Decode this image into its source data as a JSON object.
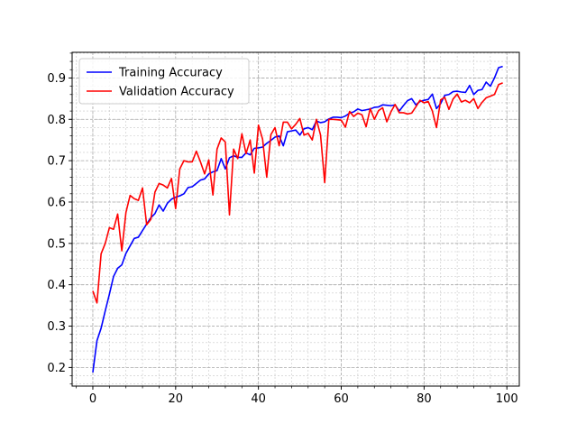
{
  "chart_data": {
    "type": "line",
    "title": "",
    "xlabel": "",
    "ylabel": "",
    "xlim": [
      -5.0,
      103.0
    ],
    "ylim": [
      0.155,
      0.962
    ],
    "xticks": [
      0,
      20,
      40,
      60,
      80,
      100
    ],
    "yticks": [
      0.2,
      0.3,
      0.4,
      0.5,
      0.6,
      0.7,
      0.8,
      0.9
    ],
    "minor_xstep": 4,
    "minor_ystep": 0.02,
    "grid": "major-and-minor-dashed",
    "legend_position": "upper-left",
    "series": [
      {
        "name": "Training Accuracy",
        "color": "#0000ff",
        "x": [
          0,
          1,
          2,
          3,
          4,
          5,
          6,
          7,
          8,
          9,
          10,
          11,
          12,
          13,
          14,
          15,
          16,
          17,
          18,
          19,
          20,
          21,
          22,
          23,
          24,
          25,
          26,
          27,
          28,
          29,
          30,
          31,
          32,
          33,
          34,
          35,
          36,
          37,
          38,
          39,
          40,
          41,
          42,
          43,
          44,
          45,
          46,
          47,
          48,
          49,
          50,
          51,
          52,
          53,
          54,
          55,
          56,
          57,
          58,
          59,
          60,
          61,
          62,
          63,
          64,
          65,
          66,
          67,
          68,
          69,
          70,
          71,
          72,
          73,
          74,
          75,
          76,
          77,
          78,
          79,
          80,
          81,
          82,
          83,
          84,
          85,
          86,
          87,
          88,
          89,
          90,
          91,
          92,
          93,
          94,
          95,
          96,
          97,
          98,
          99
        ],
        "values": [
          0.188,
          0.265,
          0.295,
          0.337,
          0.377,
          0.42,
          0.44,
          0.448,
          0.476,
          0.494,
          0.512,
          0.515,
          0.531,
          0.547,
          0.562,
          0.572,
          0.593,
          0.578,
          0.597,
          0.607,
          0.612,
          0.615,
          0.62,
          0.635,
          0.637,
          0.645,
          0.653,
          0.656,
          0.668,
          0.673,
          0.676,
          0.705,
          0.68,
          0.707,
          0.712,
          0.708,
          0.708,
          0.719,
          0.714,
          0.73,
          0.731,
          0.733,
          0.742,
          0.749,
          0.757,
          0.76,
          0.736,
          0.77,
          0.772,
          0.774,
          0.762,
          0.777,
          0.78,
          0.775,
          0.796,
          0.792,
          0.794,
          0.801,
          0.805,
          0.805,
          0.804,
          0.808,
          0.815,
          0.818,
          0.825,
          0.821,
          0.823,
          0.825,
          0.829,
          0.83,
          0.835,
          0.834,
          0.833,
          0.835,
          0.82,
          0.833,
          0.845,
          0.85,
          0.835,
          0.843,
          0.846,
          0.848,
          0.861,
          0.826,
          0.838,
          0.858,
          0.86,
          0.867,
          0.868,
          0.866,
          0.865,
          0.882,
          0.86,
          0.87,
          0.872,
          0.89,
          0.88,
          0.9,
          0.925,
          0.928
        ]
      },
      {
        "name": "Validation Accuracy",
        "color": "#ff0000",
        "x": [
          0,
          1,
          2,
          3,
          4,
          5,
          6,
          7,
          8,
          9,
          10,
          11,
          12,
          13,
          14,
          15,
          16,
          17,
          18,
          19,
          20,
          21,
          22,
          23,
          24,
          25,
          26,
          27,
          28,
          29,
          30,
          31,
          32,
          33,
          34,
          35,
          36,
          37,
          38,
          39,
          40,
          41,
          42,
          43,
          44,
          45,
          46,
          47,
          48,
          49,
          50,
          51,
          52,
          53,
          54,
          55,
          56,
          57,
          58,
          59,
          60,
          61,
          62,
          63,
          64,
          65,
          66,
          67,
          68,
          69,
          70,
          71,
          72,
          73,
          74,
          75,
          76,
          77,
          78,
          79,
          80,
          81,
          82,
          83,
          84,
          85,
          86,
          87,
          88,
          89,
          90,
          91,
          92,
          93,
          94,
          95,
          96,
          97,
          98,
          99
        ],
        "values": [
          0.385,
          0.356,
          0.475,
          0.5,
          0.538,
          0.534,
          0.571,
          0.482,
          0.575,
          0.616,
          0.608,
          0.604,
          0.634,
          0.545,
          0.558,
          0.624,
          0.645,
          0.641,
          0.634,
          0.657,
          0.584,
          0.68,
          0.7,
          0.697,
          0.697,
          0.723,
          0.697,
          0.668,
          0.702,
          0.617,
          0.728,
          0.755,
          0.745,
          0.569,
          0.728,
          0.705,
          0.765,
          0.717,
          0.75,
          0.67,
          0.786,
          0.752,
          0.66,
          0.763,
          0.78,
          0.736,
          0.793,
          0.793,
          0.777,
          0.788,
          0.802,
          0.762,
          0.766,
          0.75,
          0.8,
          0.762,
          0.647,
          0.8,
          0.8,
          0.799,
          0.798,
          0.781,
          0.819,
          0.807,
          0.815,
          0.811,
          0.782,
          0.826,
          0.8,
          0.821,
          0.828,
          0.794,
          0.818,
          0.836,
          0.816,
          0.816,
          0.813,
          0.815,
          0.83,
          0.846,
          0.84,
          0.843,
          0.82,
          0.78,
          0.847,
          0.853,
          0.824,
          0.849,
          0.861,
          0.842,
          0.846,
          0.84,
          0.85,
          0.826,
          0.841,
          0.852,
          0.856,
          0.86,
          0.884,
          0.888
        ]
      }
    ]
  }
}
